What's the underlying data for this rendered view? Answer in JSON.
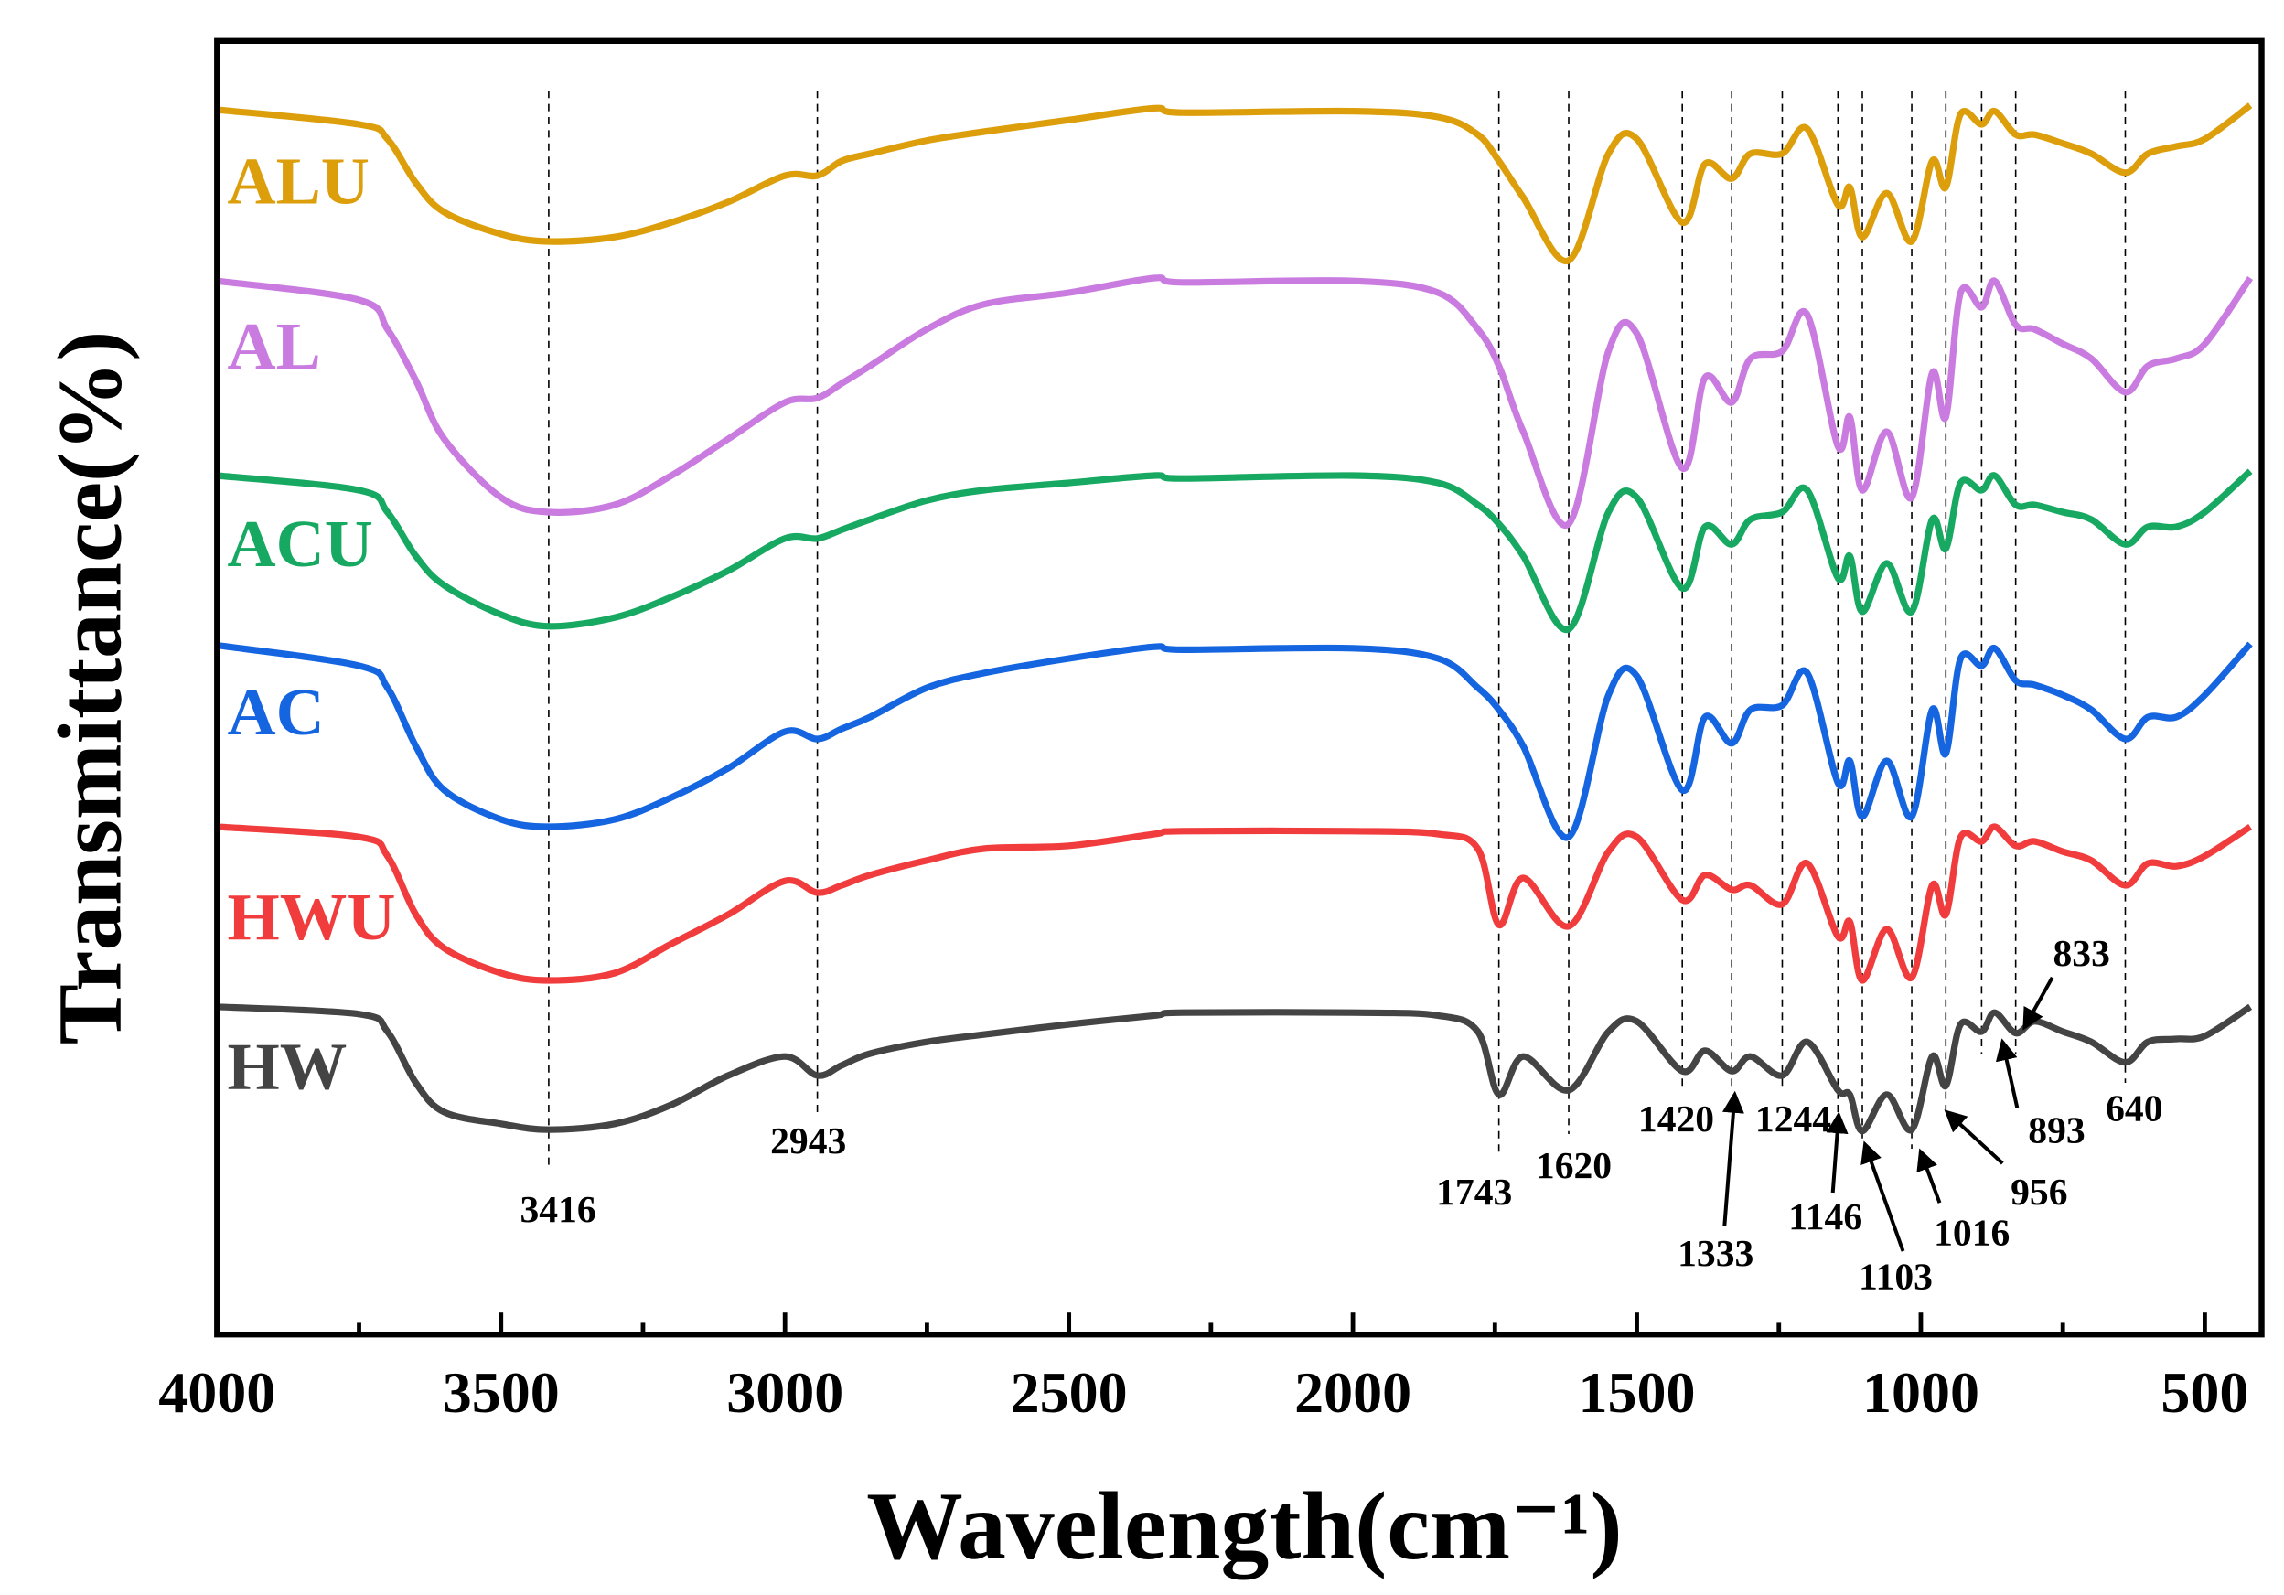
{
  "chart_data": {
    "type": "line",
    "title": "",
    "xlabel": "Wavelength(cm⁻¹)",
    "ylabel": "Transmittance(%)",
    "y_units": "arbitrary offset units (stacked spectra)",
    "xlim": [
      4000,
      400
    ],
    "ylim": [
      88,
      972
    ],
    "grid": false,
    "x_ticks": [
      4000,
      3500,
      3000,
      2500,
      2000,
      1500,
      1000,
      500
    ],
    "x_tick_labels": [
      "4000",
      "3500",
      "3000",
      "2500",
      "2000",
      "1500",
      "1000",
      "500"
    ],
    "x": [
      4000,
      3750,
      3700,
      3650,
      3600,
      3500,
      3416,
      3300,
      3200,
      3100,
      3000,
      2943,
      2900,
      2850,
      2750,
      2650,
      2500,
      2350,
      2300,
      2000,
      1850,
      1780,
      1743,
      1700,
      1620,
      1550,
      1500,
      1420,
      1380,
      1333,
      1300,
      1244,
      1200,
      1146,
      1125,
      1103,
      1060,
      1016,
      980,
      956,
      930,
      893,
      870,
      833,
      800,
      750,
      700,
      640,
      600,
      550,
      500,
      420
    ],
    "series": [
      {
        "name": "ALU",
        "color": "#dc9e0a",
        "values": [
          925,
          915,
          905,
          875,
          855,
          840,
          835,
          838,
          848,
          862,
          880,
          880,
          890,
          895,
          904,
          910,
          918,
          926,
          923,
          924,
          920,
          908,
          890,
          865,
          822,
          895,
          905,
          848,
          888,
          878,
          895,
          895,
          912,
          860,
          872,
          838,
          868,
          835,
          890,
          872,
          922,
          915,
          924,
          908,
          908,
          902,
          895,
          882,
          895,
          900,
          905,
          928
        ]
      },
      {
        "name": "AL",
        "color": "#c97be0",
        "values": [
          808,
          795,
          775,
          740,
          700,
          660,
          650,
          655,
          675,
          700,
          725,
          728,
          738,
          750,
          775,
          792,
          800,
          810,
          807,
          808,
          800,
          775,
          750,
          705,
          642,
          760,
          772,
          680,
          742,
          725,
          755,
          760,
          785,
          695,
          715,
          665,
          705,
          660,
          745,
          715,
          800,
          790,
          808,
          778,
          775,
          765,
          755,
          732,
          750,
          755,
          765,
          810
        ]
      },
      {
        "name": "ACU",
        "color": "#17a862",
        "values": [
          675,
          665,
          650,
          620,
          600,
          580,
          572,
          578,
          592,
          610,
          632,
          632,
          638,
          645,
          658,
          665,
          670,
          675,
          673,
          675,
          670,
          655,
          642,
          620,
          570,
          650,
          660,
          598,
          640,
          628,
          645,
          650,
          665,
          605,
          620,
          582,
          615,
          582,
          645,
          625,
          670,
          665,
          675,
          655,
          655,
          650,
          645,
          628,
          640,
          640,
          650,
          678
        ]
      },
      {
        "name": "AC",
        "color": "#1565e0",
        "values": [
          559,
          545,
          530,
          490,
          460,
          440,
          435,
          440,
          455,
          475,
          500,
          495,
          502,
          510,
          530,
          540,
          550,
          558,
          556,
          557,
          550,
          530,
          515,
          490,
          428,
          525,
          538,
          460,
          510,
          492,
          515,
          518,
          540,
          465,
          480,
          442,
          480,
          442,
          515,
          485,
          550,
          545,
          557,
          535,
          532,
          525,
          515,
          495,
          510,
          510,
          525,
          560
        ]
      },
      {
        "name": "HWU",
        "color": "#f03c3c",
        "values": [
          435,
          428,
          415,
          375,
          352,
          335,
          330,
          335,
          355,
          375,
          398,
          390,
          395,
          402,
          412,
          420,
          422,
          430,
          432,
          432,
          430,
          420,
          368,
          400,
          367,
          418,
          428,
          385,
          402,
          392,
          395,
          382,
          410,
          360,
          370,
          330,
          365,
          332,
          395,
          375,
          428,
          425,
          435,
          422,
          425,
          418,
          412,
          395,
          410,
          408,
          415,
          435
        ]
      },
      {
        "name": "HW",
        "color": "#444444",
        "values": [
          312,
          307,
          295,
          260,
          240,
          232,
          228,
          232,
          245,
          265,
          278,
          265,
          272,
          280,
          288,
          293,
          300,
          306,
          308,
          308,
          306,
          295,
          252,
          278,
          255,
          295,
          302,
          268,
          282,
          268,
          278,
          265,
          288,
          255,
          252,
          227,
          252,
          228,
          278,
          258,
          300,
          295,
          308,
          294,
          302,
          295,
          288,
          274,
          288,
          290,
          292,
          312
        ]
      }
    ],
    "peak_markers": [
      3416,
      2943,
      1743,
      1620,
      1420,
      1333,
      1244,
      1146,
      1103,
      1016,
      956,
      893,
      833,
      640
    ],
    "annotations": [
      "3416",
      "2943",
      "1743",
      "1620",
      "1420",
      "1333",
      "1244",
      "1146",
      "1103",
      "1016",
      "956",
      "893",
      "833",
      "640"
    ]
  }
}
